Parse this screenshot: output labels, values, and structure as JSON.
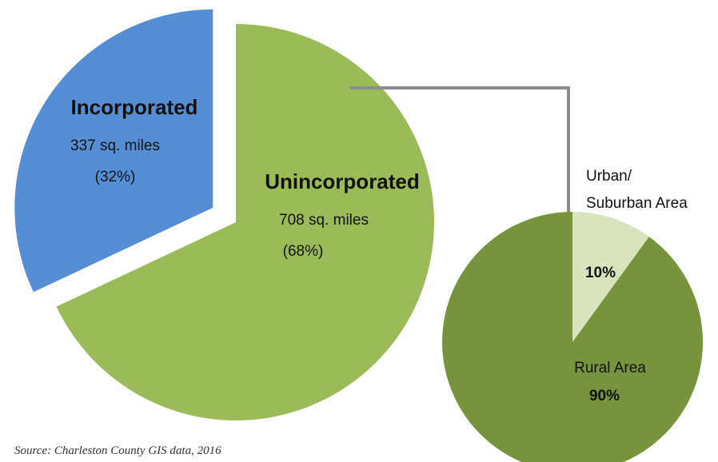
{
  "chart_data": [
    {
      "type": "pie",
      "slices": [
        {
          "name": "Incorporated",
          "value_text": "337 sq. miles",
          "percent_text": "(32%)",
          "value": 337,
          "percent": 32,
          "color": "#558ed5"
        },
        {
          "name": "Unincorporated",
          "value_text": "708 sq. miles",
          "percent_text": "(68%)",
          "value": 708,
          "percent": 68,
          "color": "#9bbb59"
        }
      ]
    },
    {
      "type": "pie",
      "slices": [
        {
          "name": "Urban/\nSuburban Area",
          "name_lines": [
            "Urban/",
            "Suburban Area"
          ],
          "percent_text": "10%",
          "percent": 10,
          "color": "#d7e4bd"
        },
        {
          "name": "Rural Area",
          "percent_text": "90%",
          "percent": 90,
          "color": "#77933c"
        }
      ]
    }
  ],
  "connector_color": "#8c8c8c",
  "source": "Source: Charleston County GIS data, 2016"
}
